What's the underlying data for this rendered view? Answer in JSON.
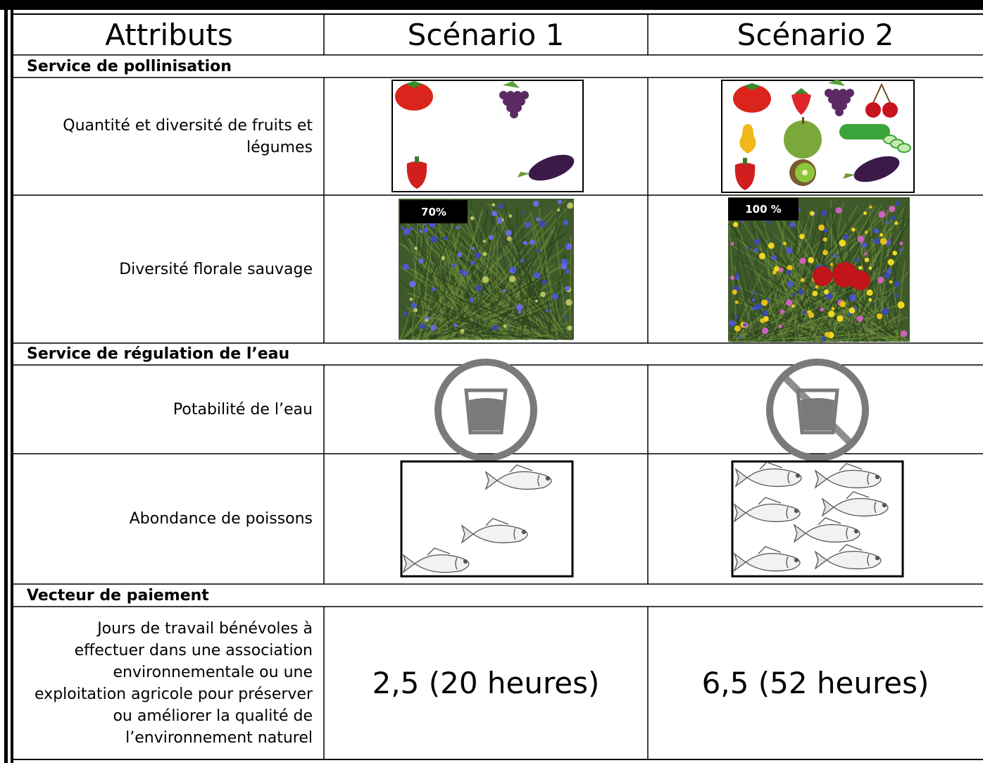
{
  "table": {
    "header": [
      "Attributs",
      "Scénario 1",
      "Scénario 2"
    ],
    "sections": [
      {
        "title": "Service de pollinisation",
        "rows": [
          {
            "attribute": "Quantité et diversité de fruits et légumes"
          },
          {
            "attribute": "Diversité florale sauvage",
            "cells": [
              "70%",
              "100 %"
            ]
          }
        ]
      },
      {
        "title": "Service de régulation de l’eau",
        "rows": [
          {
            "attribute": "Potabilité de l’eau"
          },
          {
            "attribute": "Abondance de poissons"
          }
        ]
      },
      {
        "title": "Vecteur de paiement",
        "rows": [
          {
            "attribute": "Jours de travail bénévoles à effectuer dans une association environnementale ou une exploitation agricole pour préserver ou améliorer la qualité de l’environnement naturel",
            "cells": [
              "2,5 (20 heures)",
              "6,5 (52 heures)"
            ]
          }
        ]
      }
    ]
  }
}
